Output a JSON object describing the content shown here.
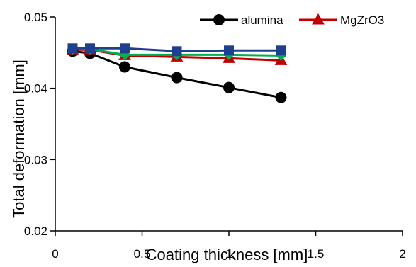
{
  "chart_data": {
    "type": "line",
    "title": "",
    "xlabel": "Coating thickness [mm]",
    "ylabel": "Total deformation [mm]",
    "xlim": [
      0,
      2
    ],
    "ylim": [
      0.02,
      0.05
    ],
    "x_ticks": [
      "0",
      "0.5",
      "1",
      "1.5",
      "2"
    ],
    "y_ticks": [
      "0.02",
      "0.03",
      "0.04",
      "0.05"
    ],
    "grid": false,
    "legend_position": "top-right",
    "x": [
      0.1,
      0.2,
      0.4,
      0.7,
      1.0,
      1.3
    ],
    "series": [
      {
        "name": "alumina",
        "color": "#000000",
        "marker": "circle",
        "values": [
          0.0452,
          0.0449,
          0.043,
          0.0415,
          0.0401,
          0.0387
        ]
      },
      {
        "name": "MgZrO3",
        "color": "#c00000",
        "marker": "triangle",
        "values": [
          0.0454,
          0.0454,
          0.0446,
          0.0444,
          0.0442,
          0.0439
        ]
      },
      {
        "name": "",
        "color": "#00b050",
        "marker": "diamond",
        "values": [
          0.0455,
          0.0455,
          0.0447,
          0.0447,
          0.0447,
          0.0446
        ]
      },
      {
        "name": "",
        "color": "#1f3f8f",
        "marker": "square",
        "values": [
          0.0456,
          0.0456,
          0.0456,
          0.0452,
          0.0453,
          0.0453
        ]
      }
    ]
  }
}
